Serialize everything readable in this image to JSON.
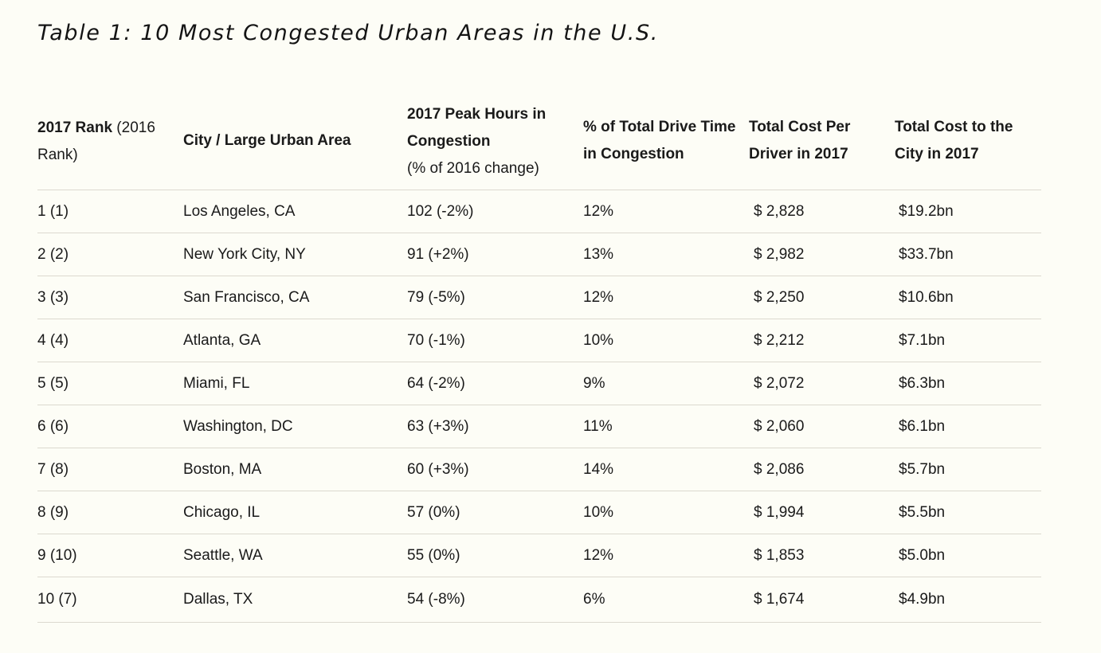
{
  "title": "Table 1: 10 Most Congested Urban Areas in the U.S.",
  "headers": {
    "rank_bold": "2017 Rank",
    "rank_plain_1": " (2016",
    "rank_plain_2": "Rank)",
    "city": "City / Large Urban Area",
    "peak_line1": "2017 Peak Hours in",
    "peak_line2": "Congestion",
    "peak_note": "(% of 2016 change)",
    "pct_line1": "% of Total Drive Time",
    "pct_line2": "in Congestion",
    "cost_driver_line1": "Total Cost Per",
    "cost_driver_line2": "Driver in 2017",
    "cost_city_line1": "Total Cost to the",
    "cost_city_line2": "City in 2017"
  },
  "rows": [
    {
      "rank": "1 (1)",
      "city": "Los Angeles, CA",
      "peak": "102 (-2%)",
      "pct": "12%",
      "cost_driver": "$ 2,828",
      "cost_city": "$19.2bn"
    },
    {
      "rank": "2 (2)",
      "city": "New York City, NY",
      "peak": "91 (+2%)",
      "pct": "13%",
      "cost_driver": "$ 2,982",
      "cost_city": "$33.7bn"
    },
    {
      "rank": "3 (3)",
      "city": "San Francisco, CA",
      "peak": "79 (-5%)",
      "pct": "12%",
      "cost_driver": "$ 2,250",
      "cost_city": "$10.6bn"
    },
    {
      "rank": "4 (4)",
      "city": "Atlanta, GA",
      "peak": "70 (-1%)",
      "pct": "10%",
      "cost_driver": "$ 2,212",
      "cost_city": "$7.1bn"
    },
    {
      "rank": "5 (5)",
      "city": "Miami, FL",
      "peak": "64 (-2%)",
      "pct": "9%",
      "cost_driver": "$ 2,072",
      "cost_city": "$6.3bn"
    },
    {
      "rank": "6 (6)",
      "city": "Washington, DC",
      "peak": "63 (+3%)",
      "pct": "11%",
      "cost_driver": "$ 2,060",
      "cost_city": "$6.1bn"
    },
    {
      "rank": "7 (8)",
      "city": "Boston, MA",
      "peak": "60 (+3%)",
      "pct": "14%",
      "cost_driver": "$ 2,086",
      "cost_city": "$5.7bn"
    },
    {
      "rank": "8 (9)",
      "city": "Chicago, IL",
      "peak": "57 (0%)",
      "pct": "10%",
      "cost_driver": "$ 1,994",
      "cost_city": "$5.5bn"
    },
    {
      "rank": "9 (10)",
      "city": "Seattle, WA",
      "peak": "55 (0%)",
      "pct": "12%",
      "cost_driver": "$ 1,853",
      "cost_city": "$5.0bn"
    },
    {
      "rank": "10 (7)",
      "city": "Dallas, TX",
      "peak": "54 (-8%)",
      "pct": "6%",
      "cost_driver": "$ 1,674",
      "cost_city": "$4.9bn"
    }
  ]
}
